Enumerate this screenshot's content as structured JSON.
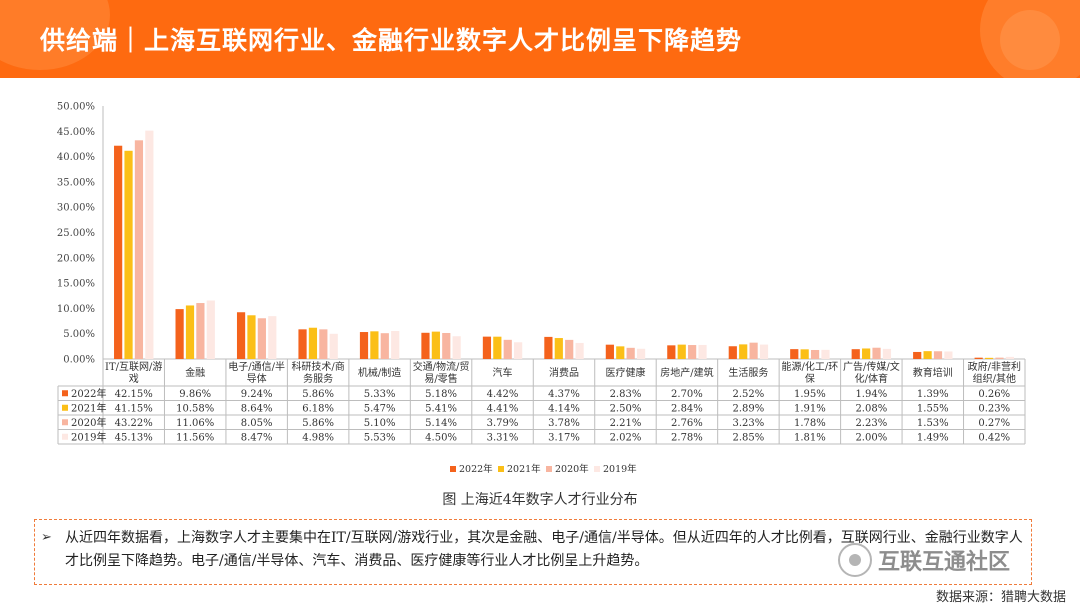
{
  "header": {
    "title": "供给端｜上海互联网行业、金融行业数字人才比例呈下降趋势"
  },
  "chart_data": {
    "type": "bar",
    "caption": "图 上海近4年数字人才行业分布",
    "ylim": [
      0,
      50
    ],
    "y_ticks": [
      "0.00%",
      "5.00%",
      "10.00%",
      "15.00%",
      "20.00%",
      "25.00%",
      "30.00%",
      "35.00%",
      "40.00%",
      "45.00%",
      "50.00%"
    ],
    "categories": [
      "IT/互联网/游戏",
      "金融",
      "电子/通信/半导体",
      "科研技术/商务服务",
      "机械/制造",
      "交通/物流/贸易/零售",
      "汽车",
      "消费品",
      "医疗健康",
      "房地产/建筑",
      "生活服务",
      "能源/化工/环保",
      "广告/传媒/文化/体育",
      "教育培训",
      "政府/非营利组织/其他"
    ],
    "category_lines": [
      [
        "IT/互联网/游",
        "戏"
      ],
      [
        "金融"
      ],
      [
        "电子/通信/半",
        "导体"
      ],
      [
        "科研技术/商",
        "务服务"
      ],
      [
        "机械/制造"
      ],
      [
        "交通/物流/贸",
        "易/零售"
      ],
      [
        "汽车"
      ],
      [
        "消费品"
      ],
      [
        "医疗健康"
      ],
      [
        "房地产/建筑"
      ],
      [
        "生活服务"
      ],
      [
        "能源/化工/环",
        "保"
      ],
      [
        "广告/传媒/文",
        "化/体育"
      ],
      [
        "教育培训"
      ],
      [
        "政府/非营利",
        "组织/其他"
      ]
    ],
    "series": [
      {
        "name": "2022年",
        "color": "#f4621c",
        "values": [
          42.15,
          9.86,
          9.24,
          5.86,
          5.33,
          5.18,
          4.42,
          4.37,
          2.83,
          2.7,
          2.52,
          1.95,
          1.94,
          1.39,
          0.26
        ],
        "labels": [
          "42.15%",
          "9.86%",
          "9.24%",
          "5.86%",
          "5.33%",
          "5.18%",
          "4.42%",
          "4.37%",
          "2.83%",
          "2.70%",
          "2.52%",
          "1.95%",
          "1.94%",
          "1.39%",
          "0.26%"
        ]
      },
      {
        "name": "2021年",
        "color": "#fbbf17",
        "values": [
          41.15,
          10.58,
          8.64,
          6.18,
          5.47,
          5.41,
          4.41,
          4.14,
          2.5,
          2.84,
          2.89,
          1.91,
          2.08,
          1.55,
          0.23
        ],
        "labels": [
          "41.15%",
          "10.58%",
          "8.64%",
          "6.18%",
          "5.47%",
          "5.41%",
          "4.41%",
          "4.14%",
          "2.50%",
          "2.84%",
          "2.89%",
          "1.91%",
          "2.08%",
          "1.55%",
          "0.23%"
        ]
      },
      {
        "name": "2020年",
        "color": "#f8b5a0",
        "values": [
          43.22,
          11.06,
          8.05,
          5.86,
          5.1,
          5.14,
          3.79,
          3.78,
          2.21,
          2.76,
          3.23,
          1.78,
          2.23,
          1.53,
          0.27
        ],
        "labels": [
          "43.22%",
          "11.06%",
          "8.05%",
          "5.86%",
          "5.10%",
          "5.14%",
          "3.79%",
          "3.78%",
          "2.21%",
          "2.76%",
          "3.23%",
          "1.78%",
          "2.23%",
          "1.53%",
          "0.27%"
        ]
      },
      {
        "name": "2019年",
        "color": "#fde8e3",
        "values": [
          45.13,
          11.56,
          8.47,
          4.98,
          5.53,
          4.5,
          3.31,
          3.17,
          2.02,
          2.78,
          2.85,
          1.81,
          2.0,
          1.49,
          0.42
        ],
        "labels": [
          "45.13%",
          "11.56%",
          "8.47%",
          "4.98%",
          "5.53%",
          "4.50%",
          "3.31%",
          "3.17%",
          "2.02%",
          "2.78%",
          "2.85%",
          "1.81%",
          "2.00%",
          "1.49%",
          "0.42%"
        ]
      }
    ],
    "legend_position": "bottom",
    "grid": false
  },
  "note": {
    "bullet": "➢",
    "text": "从近四年数据看，上海数字人才主要集中在IT/互联网/游戏行业，其次是金融、电子/通信/半导体。但从近四年的人才比例看，互联网行业、金融行业数字人才比例呈下降趋势。电子/通信/半导体、汽车、消费品、医疗健康等行业人才比例呈上升趋势。"
  },
  "watermark": {
    "text": "互联互通社区",
    "icon": "wechat-icon"
  },
  "source": "数据来源：猎聘大数据"
}
